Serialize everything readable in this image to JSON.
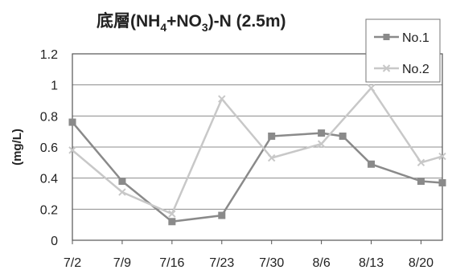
{
  "chart_data": {
    "type": "line",
    "title": {
      "prefix": "底層(NH",
      "sub1": "4",
      "mid": "+NO",
      "sub2": "3",
      "suffix": ")-N  (2.5m)"
    },
    "ylabel": "(mg/L)",
    "xlabel": "",
    "x_ticks": [
      "7/2",
      "7/9",
      "7/16",
      "7/23",
      "7/30",
      "8/6",
      "8/13",
      "8/20"
    ],
    "y_ticks": [
      "0",
      "0.2",
      "0.4",
      "0.6",
      "0.8",
      "1",
      "1.2"
    ],
    "ylim": [
      0,
      1.2
    ],
    "grid": "horizontal",
    "legend_position": "top-right",
    "series": [
      {
        "name": "No.1",
        "color": "#8a8a8a",
        "marker": "square",
        "points": [
          {
            "x": "7/2",
            "y": 0.76
          },
          {
            "x": "7/9",
            "y": 0.38
          },
          {
            "x": "7/16",
            "y": 0.12
          },
          {
            "x": "7/23",
            "y": 0.16
          },
          {
            "x": "7/30",
            "y": 0.67
          },
          {
            "x": "8/6",
            "y": 0.69
          },
          {
            "x": "8/9",
            "y": 0.67
          },
          {
            "x": "8/13",
            "y": 0.49
          },
          {
            "x": "8/20",
            "y": 0.38
          },
          {
            "x": "8/23",
            "y": 0.37
          }
        ]
      },
      {
        "name": "No.2",
        "color": "#c8c8c8",
        "marker": "x",
        "points": [
          {
            "x": "7/2",
            "y": 0.58
          },
          {
            "x": "7/9",
            "y": 0.31
          },
          {
            "x": "7/16",
            "y": 0.17
          },
          {
            "x": "7/23",
            "y": 0.91
          },
          {
            "x": "7/30",
            "y": 0.53
          },
          {
            "x": "8/6",
            "y": 0.62
          },
          {
            "x": "8/13",
            "y": 0.98
          },
          {
            "x": "8/20",
            "y": 0.5
          },
          {
            "x": "8/23",
            "y": 0.54
          }
        ]
      }
    ]
  }
}
